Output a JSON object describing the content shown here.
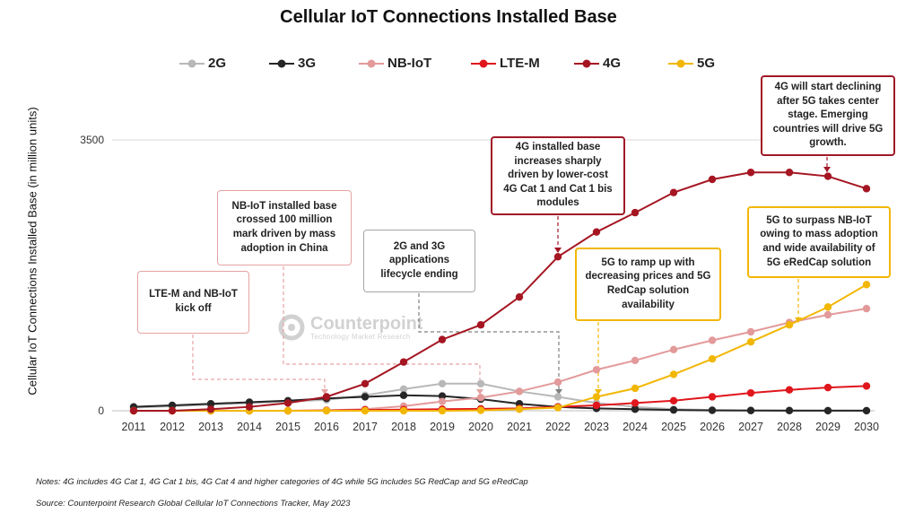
{
  "colors": {
    "2G": "#b8b8b8",
    "3G": "#262626",
    "NB-IoT": "#e39a9a",
    "LTE-M": "#e0161c",
    "4G": "#a51622",
    "5G": "#f2b705"
  },
  "chart_data": {
    "type": "line",
    "title": "Cellular IoT Connections Installed Base",
    "ylabel": "Cellular IoT Connections Installed Base (in million units)",
    "xlabel": "",
    "x": [
      "2011",
      "2012",
      "2013",
      "2014",
      "2015",
      "2016",
      "2017",
      "2018",
      "2019",
      "2020",
      "2021",
      "2022",
      "2023",
      "2024",
      "2025",
      "2026",
      "2027",
      "2028",
      "2029",
      "2030"
    ],
    "ylim": [
      0,
      3500
    ],
    "yticks": [
      0,
      3500
    ],
    "grid": "horizontal",
    "legend_position": "top",
    "series": [
      {
        "name": "2G",
        "values": [
          40,
          60,
          80,
          100,
          120,
          140,
          200,
          280,
          350,
          350,
          250,
          180,
          100,
          50,
          20,
          10,
          5,
          5,
          3,
          2
        ]
      },
      {
        "name": "3G",
        "values": [
          50,
          70,
          90,
          110,
          130,
          160,
          180,
          200,
          190,
          150,
          90,
          50,
          30,
          20,
          10,
          5,
          3,
          2,
          1,
          1
        ]
      },
      {
        "name": "NB-IoT",
        "values": [
          0,
          0,
          0,
          0,
          0,
          5,
          20,
          60,
          120,
          170,
          250,
          370,
          530,
          650,
          790,
          910,
          1020,
          1140,
          1240,
          1320
        ]
      },
      {
        "name": "LTE-M",
        "values": [
          0,
          0,
          0,
          0,
          0,
          5,
          10,
          15,
          20,
          25,
          30,
          50,
          70,
          100,
          130,
          180,
          230,
          270,
          300,
          320
        ]
      },
      {
        "name": "4G",
        "values": [
          0,
          0,
          20,
          50,
          100,
          180,
          350,
          630,
          920,
          1110,
          1470,
          1990,
          2310,
          2560,
          2820,
          2990,
          3080,
          3080,
          3030,
          2870
        ]
      },
      {
        "name": "5G",
        "values": [
          0,
          0,
          0,
          0,
          0,
          0,
          0,
          0,
          0,
          5,
          20,
          40,
          180,
          290,
          470,
          670,
          890,
          1110,
          1340,
          1630
        ]
      }
    ],
    "annotations": [
      "LTE-M and NB-IoT kick off",
      "NB-IoT installed base crossed 100 million mark driven by mass adoption in China",
      "2G and 3G applications lifecycle ending",
      "4G installed base increases sharply driven by lower-cost 4G Cat 1 and Cat 1 bis modules",
      "5G to ramp up with decreasing prices and 5G RedCap solution availability",
      "4G will start declining after 5G takes center stage. Emerging countries will drive 5G growth.",
      "5G to surpass NB-IoT owing to mass adoption and wide availability of 5G eRedCap solution"
    ]
  },
  "watermark": {
    "name": "Counterpoint",
    "sub": "Technology Market Research"
  },
  "notes": "Notes: 4G includes 4G Cat 1, 4G Cat 1 bis, 4G Cat 4 and higher categories of 4G while 5G includes 5G RedCap and 5G eRedCap",
  "source": "Source: Counterpoint Research Global Cellular IoT Connections Tracker, May 2023"
}
